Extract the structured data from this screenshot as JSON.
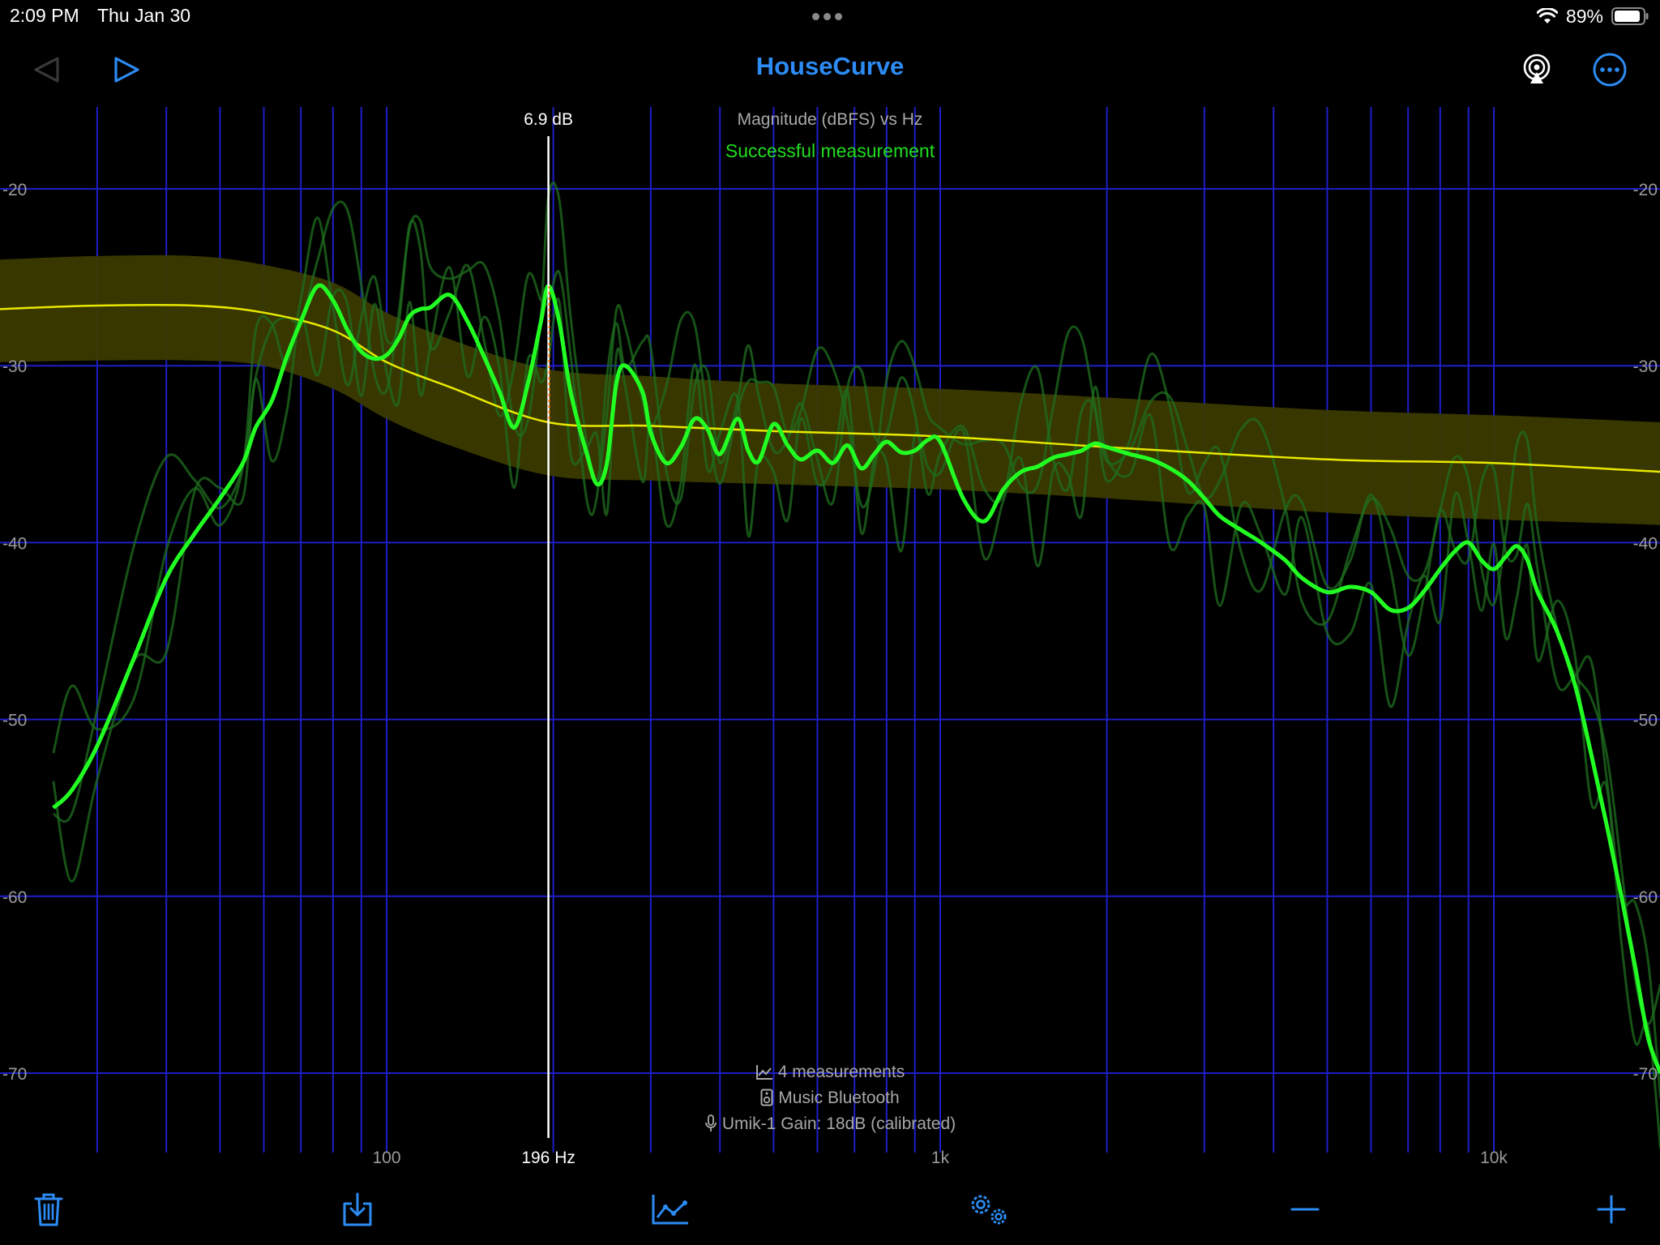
{
  "status": {
    "time": "2:09 PM",
    "date": "Thu Jan 30",
    "battery": "89%"
  },
  "nav": {
    "title": "HouseCurve",
    "icons": [
      "back-triangle-icon",
      "play-icon",
      "airplay-icon",
      "more-ellipsis-icon"
    ]
  },
  "plot": {
    "title": "Magnitude (dBFS) vs Hz",
    "status": "Successful measurement",
    "cursor_value": "6.9 dB",
    "cursor_freq": "196 Hz",
    "y_ticks": [
      "-20",
      "-30",
      "-40",
      "-50",
      "-60",
      "-70"
    ],
    "x_ticks": [
      "100",
      "1k",
      "10k"
    ],
    "colors": {
      "grid": "#1e1ec8",
      "main_trace": "#22ff22",
      "target_curve": "#e8e800",
      "target_band": "#3b3a00",
      "title": "#a8a8a8",
      "status": "#22dd22"
    }
  },
  "info": {
    "measurements": "4 measurements",
    "source": "Music Bluetooth",
    "mic": "Umik-1  Gain: 18dB (calibrated)"
  },
  "toolbar": {
    "icons": [
      "trash-icon",
      "download-icon",
      "chart-icon",
      "settings-gears-icon",
      "minus-icon",
      "plus-icon"
    ]
  },
  "chart_data": {
    "type": "line",
    "title": "Magnitude (dBFS) vs Hz",
    "xscale": "log",
    "xlim": [
      20,
      20000
    ],
    "ylim": [
      -75,
      -15
    ],
    "x_ticks": [
      100,
      1000,
      10000
    ],
    "x_tick_labels": [
      "100",
      "1k",
      "10k"
    ],
    "y_ticks": [
      -20,
      -30,
      -40,
      -50,
      -60,
      -70
    ],
    "grid": true,
    "cursor": {
      "freq": 196,
      "value_label": "6.9 dB",
      "freq_label": "196 Hz"
    },
    "target": {
      "x": [
        20,
        30,
        45,
        60,
        80,
        100,
        130,
        196,
        300,
        500,
        1000,
        2000,
        5000,
        10000,
        20000
      ],
      "y": [
        -26.8,
        -26.6,
        -26.6,
        -27.0,
        -28.0,
        -29.8,
        -31.2,
        -33.2,
        -33.4,
        -33.7,
        -34.0,
        -34.6,
        -35.3,
        -35.5,
        -36.0
      ],
      "band_upper": [
        -24.0,
        -23.8,
        -23.8,
        -24.3,
        -25.3,
        -27.0,
        -28.5,
        -30.2,
        -30.6,
        -31.0,
        -31.3,
        -31.8,
        -32.5,
        -32.8,
        -33.2
      ],
      "band_lower": [
        -29.8,
        -29.7,
        -29.7,
        -30.0,
        -31.3,
        -33.0,
        -34.5,
        -36.2,
        -36.5,
        -36.7,
        -37.0,
        -37.5,
        -38.3,
        -38.7,
        -39.0
      ]
    },
    "series": [
      {
        "x": [
          25,
          27,
          30,
          35,
          40,
          45,
          50,
          55,
          58,
          62,
          66,
          70,
          75,
          80,
          85,
          90,
          95,
          100,
          105,
          110,
          115,
          120,
          130,
          140,
          150,
          160,
          170,
          180,
          190,
          196,
          205,
          215,
          230,
          240,
          250,
          260,
          270,
          290,
          300,
          320,
          340,
          360,
          380,
          400,
          430,
          450,
          470,
          500,
          530,
          560,
          600,
          640,
          680,
          720,
          760,
          800,
          850,
          900,
          950,
          1000,
          1100,
          1200,
          1300,
          1400,
          1500,
          1600,
          1700,
          1800,
          1900,
          2000,
          2200,
          2400,
          2600,
          2800,
          3000,
          3200,
          3500,
          3800,
          4200,
          4500,
          5000,
          5500,
          6000,
          6500,
          7000,
          7500,
          8000,
          8500,
          9000,
          9500,
          10000,
          10500,
          11000,
          11500,
          12000,
          13000,
          14000,
          15000,
          16000,
          17000,
          18000,
          19000,
          20000
        ],
        "y": [
          -55,
          -54,
          -51.5,
          -46.5,
          -42,
          -39.5,
          -37.5,
          -35.5,
          -33.5,
          -32,
          -29.5,
          -27.5,
          -25.5,
          -26.3,
          -28,
          -29.2,
          -29.6,
          -29.4,
          -28.5,
          -27.2,
          -26.8,
          -26.7,
          -26.0,
          -27.5,
          -29.5,
          -31.5,
          -33.5,
          -31.0,
          -27.5,
          -25.5,
          -27.5,
          -31.5,
          -35.0,
          -36.7,
          -35.5,
          -31.0,
          -30.0,
          -31.5,
          -33.8,
          -35.5,
          -34.6,
          -33.0,
          -33.6,
          -35.0,
          -33.0,
          -34.8,
          -35.4,
          -33.3,
          -34.5,
          -35.3,
          -34.8,
          -35.5,
          -34.5,
          -35.8,
          -35.0,
          -34.3,
          -34.9,
          -34.8,
          -34.2,
          -34.3,
          -37.5,
          -38.8,
          -37.0,
          -36.0,
          -35.7,
          -35.2,
          -35.0,
          -34.8,
          -34.4,
          -34.6,
          -35.0,
          -35.3,
          -35.8,
          -36.5,
          -37.5,
          -38.5,
          -39.3,
          -40.0,
          -41.0,
          -42.0,
          -42.8,
          -42.5,
          -42.8,
          -43.8,
          -43.7,
          -42.7,
          -41.5,
          -40.5,
          -40.0,
          -41.0,
          -41.5,
          -40.8,
          -40.2,
          -41.0,
          -42.8,
          -45.0,
          -48.0,
          -52.0,
          -56.0,
          -60.0,
          -64.0,
          -68.0,
          -70.0
        ]
      }
    ]
  }
}
